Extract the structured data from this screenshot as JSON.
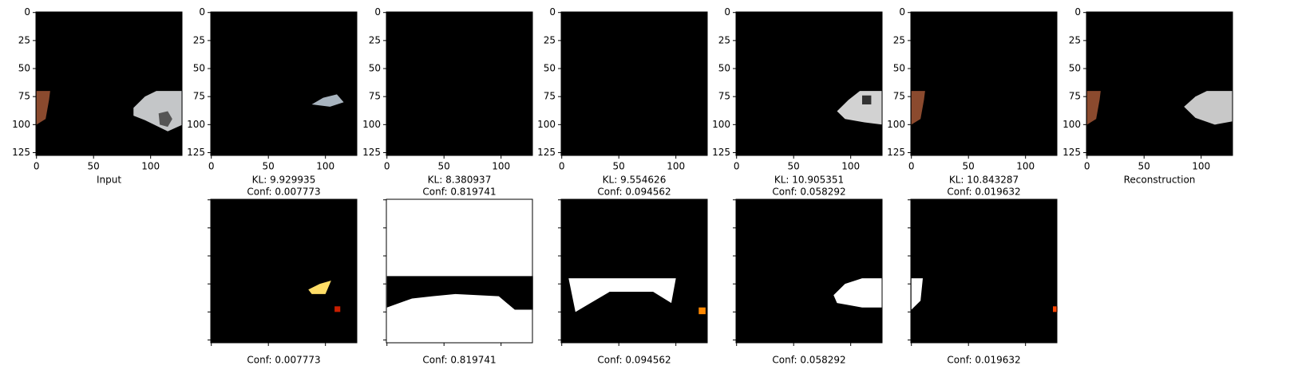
{
  "chart_data": [
    {
      "type": "image",
      "xlabel": [
        "Input"
      ],
      "xlim": [
        -0.5,
        127.5
      ],
      "ylim": [
        127.5,
        -0.5
      ],
      "xticks": [
        0,
        50,
        100
      ],
      "yticks": [
        0,
        25,
        50,
        75,
        100,
        125
      ],
      "tick_labels": true
    },
    {
      "type": "image",
      "xlabel": [
        "KL: 9.929935",
        "Conf: 0.007773"
      ],
      "xlim": [
        -0.5,
        127.5
      ],
      "ylim": [
        127.5,
        -0.5
      ],
      "xticks": [
        0,
        50,
        100
      ],
      "yticks": [
        0,
        25,
        50,
        75,
        100,
        125
      ],
      "tick_labels": true
    },
    {
      "type": "image",
      "xlabel": [
        "KL: 8.380937",
        "Conf: 0.819741"
      ],
      "xlim": [
        -0.5,
        127.5
      ],
      "ylim": [
        127.5,
        -0.5
      ],
      "xticks": [
        0,
        50,
        100
      ],
      "yticks": [
        0,
        25,
        50,
        75,
        100,
        125
      ],
      "tick_labels": true
    },
    {
      "type": "image",
      "xlabel": [
        "KL: 9.554626",
        "Conf: 0.094562"
      ],
      "xlim": [
        -0.5,
        127.5
      ],
      "ylim": [
        127.5,
        -0.5
      ],
      "xticks": [
        0,
        50,
        100
      ],
      "yticks": [
        0,
        25,
        50,
        75,
        100,
        125
      ],
      "tick_labels": true
    },
    {
      "type": "image",
      "xlabel": [
        "KL: 10.905351",
        "Conf: 0.058292"
      ],
      "xlim": [
        -0.5,
        127.5
      ],
      "ylim": [
        127.5,
        -0.5
      ],
      "xticks": [
        0,
        50,
        100
      ],
      "yticks": [
        0,
        25,
        50,
        75,
        100,
        125
      ],
      "tick_labels": true
    },
    {
      "type": "image",
      "xlabel": [
        "KL: 10.843287",
        "Conf: 0.019632"
      ],
      "xlim": [
        -0.5,
        127.5
      ],
      "ylim": [
        127.5,
        -0.5
      ],
      "xticks": [
        0,
        50,
        100
      ],
      "yticks": [
        0,
        25,
        50,
        75,
        100,
        125
      ],
      "tick_labels": true
    },
    {
      "type": "image",
      "xlabel": [
        "Reconstruction"
      ],
      "xlim": [
        -0.5,
        127.5
      ],
      "ylim": [
        127.5,
        -0.5
      ],
      "xticks": [
        0,
        50,
        100
      ],
      "yticks": [
        0,
        25,
        50,
        75,
        100,
        125
      ],
      "tick_labels": true
    },
    {
      "type": "image",
      "xlabel": [
        "Conf: 0.007773"
      ],
      "xlim": [
        -0.5,
        127.5
      ],
      "ylim": [
        127.5,
        -0.5
      ],
      "xticks": [
        0,
        50,
        100
      ],
      "yticks": [
        0,
        25,
        50,
        75,
        100,
        125
      ],
      "tick_labels": false
    },
    {
      "type": "image",
      "xlabel": [
        "Conf: 0.819741"
      ],
      "xlim": [
        -0.5,
        127.5
      ],
      "ylim": [
        127.5,
        -0.5
      ],
      "xticks": [
        0,
        50,
        100
      ],
      "yticks": [
        0,
        25,
        50,
        75,
        100,
        125
      ],
      "tick_labels": false
    },
    {
      "type": "image",
      "xlabel": [
        "Conf: 0.094562"
      ],
      "xlim": [
        -0.5,
        127.5
      ],
      "ylim": [
        127.5,
        -0.5
      ],
      "xticks": [
        0,
        50,
        100
      ],
      "yticks": [
        0,
        25,
        50,
        75,
        100,
        125
      ],
      "tick_labels": false
    },
    {
      "type": "image",
      "xlabel": [
        "Conf: 0.058292"
      ],
      "xlim": [
        -0.5,
        127.5
      ],
      "ylim": [
        127.5,
        -0.5
      ],
      "xticks": [
        0,
        50,
        100
      ],
      "yticks": [
        0,
        25,
        50,
        75,
        100,
        125
      ],
      "tick_labels": false
    },
    {
      "type": "image",
      "xlabel": [
        "Conf: 0.019632"
      ],
      "xlim": [
        -0.5,
        127.5
      ],
      "ylim": [
        127.5,
        -0.5
      ],
      "xticks": [
        0,
        50,
        100
      ],
      "yticks": [
        0,
        25,
        50,
        75,
        100,
        125
      ],
      "tick_labels": false
    }
  ]
}
